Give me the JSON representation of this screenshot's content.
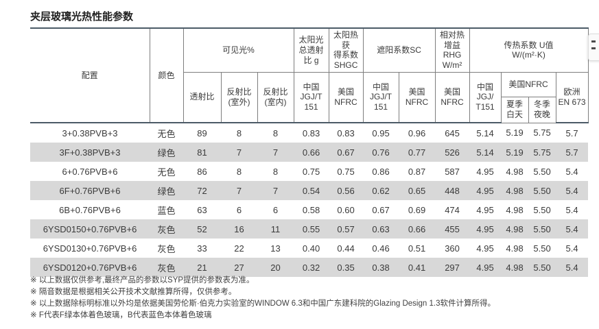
{
  "page_title": "夹层玻璃光热性能参数",
  "colors": {
    "accent_line": "#4b5a66",
    "grid_line": "#7d7d7d",
    "stripe_row": "#d8d8d8",
    "text": "#3a3a3a"
  },
  "table": {
    "header": {
      "config": "配置",
      "color": "颜色",
      "visible_light": "可见光%",
      "transmittance": "透射比",
      "reflectance_outdoor": "反射比\n(室外)",
      "reflectance_indoor": "反射比\n(室内)",
      "solar_transmittance": "太阳光\n总透射\n比 g",
      "shgc": "太阳热获\n得系数\nSHGC",
      "shading_coefficient": "遮阳系数SC",
      "relative_heat_gain": "相对热\n增益RHG\nW/m²",
      "u_value": "传热系数 U值\nW/(m²·K)",
      "china_jgj": "中国\nJGJ/T\n151",
      "usa_nfrc": "美国\nNFRC",
      "china_jgj_u": "中国\nJGJ/\nT151",
      "usa_nfrc_u": "美国NFRC",
      "summer_day": "夏季\n白天",
      "winter_night": "冬季\n夜晚",
      "europe_en673": "欧洲\nEN 673"
    },
    "rows": [
      {
        "config": "3+0.38PVB+3",
        "color": "无色",
        "values": [
          "89",
          "8",
          "8",
          "0.83",
          "0.83",
          "0.95",
          "0.96",
          "645",
          "5.14",
          "5.19",
          "5.75",
          "5.7"
        ]
      },
      {
        "config": "3F+0.38PVB+3",
        "color": "绿色",
        "values": [
          "81",
          "7",
          "7",
          "0.66",
          "0.67",
          "0.76",
          "0.77",
          "526",
          "5.14",
          "5.19",
          "5.75",
          "5.7"
        ]
      },
      {
        "config": "6+0.76PVB+6",
        "color": "无色",
        "values": [
          "86",
          "8",
          "8",
          "0.75",
          "0.75",
          "0.86",
          "0.87",
          "587",
          "4.95",
          "4.98",
          "5.50",
          "5.4"
        ]
      },
      {
        "config": "6F+0.76PVB+6",
        "color": "绿色",
        "values": [
          "72",
          "7",
          "7",
          "0.54",
          "0.56",
          "0.62",
          "0.65",
          "448",
          "4.95",
          "4.98",
          "5.50",
          "5.4"
        ]
      },
      {
        "config": "6B+0.76PVB+6",
        "color": "蓝色",
        "values": [
          "63",
          "6",
          "6",
          "0.58",
          "0.60",
          "0.67",
          "0.69",
          "474",
          "4.95",
          "4.98",
          "5.50",
          "5.4"
        ]
      },
      {
        "config": "6YSD0150+0.76PVB+6",
        "color": "灰色",
        "values": [
          "52",
          "16",
          "11",
          "0.55",
          "0.57",
          "0.63",
          "0.66",
          "455",
          "4.95",
          "4.98",
          "5.50",
          "5.4"
        ]
      },
      {
        "config": "6YSD0130+0.76PVB+6",
        "color": "灰色",
        "values": [
          "33",
          "22",
          "13",
          "0.40",
          "0.44",
          "0.46",
          "0.51",
          "360",
          "4.95",
          "4.98",
          "5.50",
          "5.4"
        ]
      },
      {
        "config": "6YSD0120+0.76PVB+6",
        "color": "灰色",
        "values": [
          "21",
          "27",
          "20",
          "0.32",
          "0.35",
          "0.38",
          "0.41",
          "297",
          "4.95",
          "4.98",
          "5.50",
          "5.4"
        ]
      }
    ]
  },
  "footnotes": [
    "※ 以上数据仅供参考,最终产品的参数以SYP提供的参数表为准。",
    "※ 隔音数据是根据相关公开技术文献推算所得，仅供参考。",
    "※ 以上数据除标明标准以外均是依据美国劳伦斯·伯克力实验室的WINDOW 6.3和中国广东建科院的Glazing Design 1.3软件计算所得。",
    "※ F代表F绿本体着色玻璃，B代表蓝色本体着色玻璃"
  ]
}
